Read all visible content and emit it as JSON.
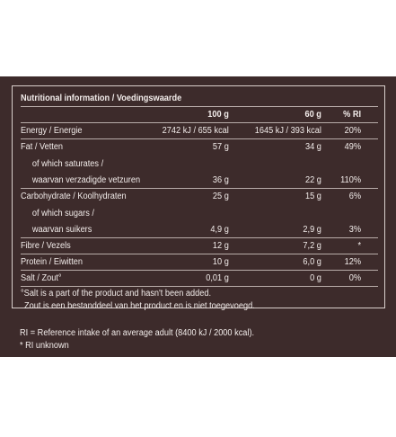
{
  "table": {
    "title": "Nutritional information / Voedingswaarde",
    "headers": [
      "100 g",
      "60 g",
      "% RI"
    ],
    "rows": [
      {
        "label": "Energy / Energie",
        "v100": "2742 kJ / 655 kcal",
        "v60": "1645 kJ / 393 kcal",
        "ri": "20%"
      },
      {
        "label": "Fat / Vetten",
        "v100": "57 g",
        "v60": "34 g",
        "ri": "49%"
      },
      {
        "label": "of which saturates /",
        "v100": "",
        "v60": "",
        "ri": ""
      },
      {
        "label": "waarvan verzadigde vetzuren",
        "v100": "36 g",
        "v60": "22 g",
        "ri": "110%"
      },
      {
        "label": "Carbohydrate / Koolhydraten",
        "v100": "25 g",
        "v60": "15 g",
        "ri": "6%"
      },
      {
        "label": "of which sugars /",
        "v100": "",
        "v60": "",
        "ri": ""
      },
      {
        "label": "waarvan suikers",
        "v100": "4,9 g",
        "v60": "2,9 g",
        "ri": "3%"
      },
      {
        "label": "Fibre / Vezels",
        "v100": "12 g",
        "v60": "7,2 g",
        "ri": "*"
      },
      {
        "label": "Protein / Eiwitten",
        "v100": "10 g",
        "v60": "6,0 g",
        "ri": "12%"
      },
      {
        "label": "Salt / Zout°",
        "v100": "0,01 g",
        "v60": "0 g",
        "ri": "0%"
      }
    ],
    "note_line1": "°Salt is a part of the product and hasn't been added.",
    "note_line2": "Zout is een bestanddeel van het product en is niet toegevoegd."
  },
  "footer": {
    "ri_definition": "RI = Reference intake of an average adult (8400 kJ / 2000 kcal).",
    "ri_unknown": "* RI unknown"
  },
  "colors": {
    "background": "#3d2b2b",
    "text": "#f2ecea",
    "rule": "#b8aca9"
  }
}
